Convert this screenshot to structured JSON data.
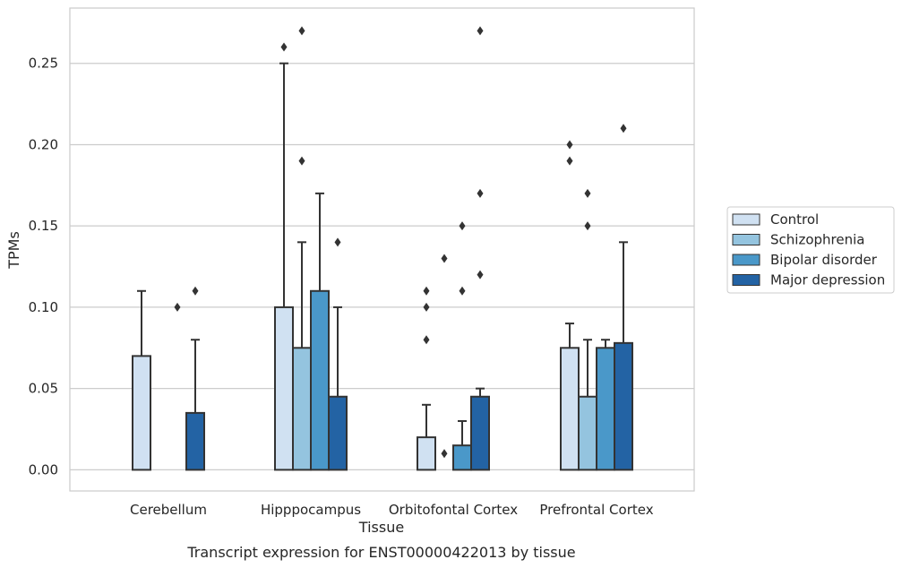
{
  "chart_data": {
    "type": "bar",
    "xlabel": "Tissue",
    "ylabel": "TPMs",
    "caption": "Transcript expression for ENST00000422013 by tissue",
    "ylim": [
      -0.013,
      0.284
    ],
    "yticks": [
      "0.00",
      "0.05",
      "0.10",
      "0.15",
      "0.20",
      "0.25"
    ],
    "grid": "horizontal",
    "legend_position": "right",
    "categories": [
      "Cerebellum",
      "Hipppocampus",
      "Orbitofontal Cortex",
      "Prefrontal Cortex"
    ],
    "series": [
      {
        "name": "Control",
        "color": "#d0e1f2",
        "values": [
          0.07,
          0.1,
          0.02,
          0.075
        ],
        "whisker_high": [
          0.11,
          0.25,
          0.04,
          0.09
        ],
        "outliers": [
          [],
          [
            0.26
          ],
          [
            0.08,
            0.1,
            0.11
          ],
          [
            0.19,
            0.2
          ]
        ]
      },
      {
        "name": "Schizophrenia",
        "color": "#94c4df",
        "values": [
          0.0,
          0.075,
          0.0,
          0.045
        ],
        "whisker_high": [
          null,
          0.14,
          null,
          0.08
        ],
        "outliers": [
          [],
          [
            0.19,
            0.27
          ],
          [
            0.01,
            0.13
          ],
          [
            0.15,
            0.17
          ]
        ]
      },
      {
        "name": "Bipolar disorder",
        "color": "#4a98c9",
        "values": [
          0.0,
          0.11,
          0.015,
          0.075
        ],
        "whisker_high": [
          null,
          0.17,
          0.03,
          0.08
        ],
        "outliers": [
          [
            0.1
          ],
          [],
          [
            0.11,
            0.15
          ],
          []
        ]
      },
      {
        "name": "Major depression",
        "color": "#2363a4",
        "values": [
          0.035,
          0.045,
          0.045,
          0.078
        ],
        "whisker_high": [
          0.08,
          0.1,
          0.05,
          0.14
        ],
        "outliers": [
          [
            0.11
          ],
          [
            0.14
          ],
          [
            0.12,
            0.17,
            0.27
          ],
          [
            0.21
          ]
        ]
      }
    ]
  }
}
